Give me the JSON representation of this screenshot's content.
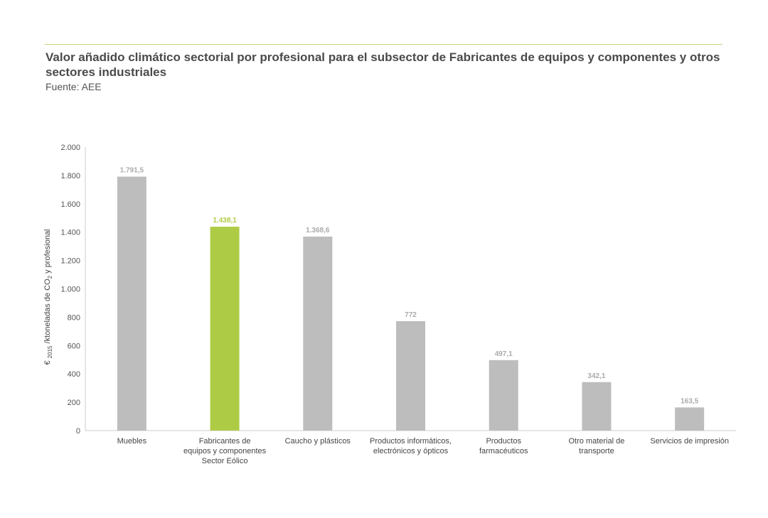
{
  "header": {
    "title": "Valor añadido climático sectorial por profesional para el subsector de Fabricantes de equipos y componentes y otros sectores industriales",
    "source": "Fuente: AEE"
  },
  "chart_data": {
    "type": "bar",
    "title": "Valor añadido climático sectorial por profesional para el subsector de Fabricantes de equipos y componentes y otros sectores industriales",
    "ylabel": "€ 2015 /ktoneladas de CO2 y profesional",
    "ylabel_parts": {
      "pre": "€ ",
      "sub1": "2015",
      "mid": " /ktoneladas de CO",
      "sub2": "2",
      "post": " y profesional"
    },
    "xlabel": "",
    "ylim": [
      0,
      2000
    ],
    "yticks": [
      0,
      200,
      400,
      600,
      800,
      1000,
      1200,
      1400,
      1600,
      1800,
      2000
    ],
    "ytick_labels": [
      "0",
      "200",
      "400",
      "600",
      "800",
      "1.000",
      "1.200",
      "1.400",
      "1.600",
      "1.800",
      "2.000"
    ],
    "grid": false,
    "categories": [
      [
        "Muebles"
      ],
      [
        "Fabricantes de",
        "equipos y componentes",
        "Sector Eólico"
      ],
      [
        "Caucho y plásticos"
      ],
      [
        "Productos informáticos,",
        "electrónicos y ópticos"
      ],
      [
        "Productos",
        "farmacéuticos"
      ],
      [
        "Otro material de",
        "transporte"
      ],
      [
        "Servicios de impresión"
      ]
    ],
    "values": [
      1791.5,
      1438.1,
      1368.6,
      772,
      497.1,
      342.1,
      163.5
    ],
    "data_labels": [
      "1.791,5",
      "1.438,1",
      "1.368,6",
      "772",
      "497,1",
      "342,1",
      "163,5"
    ],
    "highlight_index": 1,
    "colors": {
      "default": "#bdbdbd",
      "highlight": "#aecb45",
      "default_label": "#aaaaaa",
      "highlight_label": "#aecb45"
    }
  }
}
